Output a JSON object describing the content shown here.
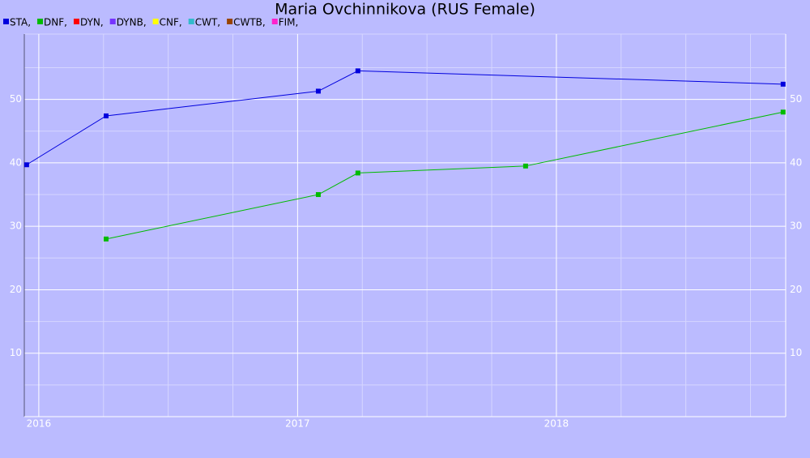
{
  "chart_data": {
    "type": "line",
    "title": "Maria Ovchinnikova (RUS Female)",
    "series": [
      {
        "name": "STA,",
        "color": "#0000dd",
        "x": [
          2015.953,
          2016.26,
          2017.08,
          2017.233,
          2018.876
        ],
        "values": [
          39.7,
          47.4,
          51.3,
          54.5,
          52.4
        ]
      },
      {
        "name": "DNF,",
        "color": "#00bb00",
        "x": [
          2016.26,
          2017.08,
          2017.233,
          2017.881,
          2018.876
        ],
        "values": [
          28.0,
          35.0,
          38.4,
          39.5,
          48.0
        ]
      },
      {
        "name": "DYN,",
        "color": "#ff0000",
        "x": [],
        "values": []
      },
      {
        "name": "DYNB,",
        "color": "#7733ff",
        "x": [],
        "values": []
      },
      {
        "name": "CNF,",
        "color": "#ffff00",
        "x": [],
        "values": []
      },
      {
        "name": "CWT,",
        "color": "#33bbcc",
        "x": [],
        "values": []
      },
      {
        "name": "CWTB,",
        "color": "#994400",
        "x": [],
        "values": []
      },
      {
        "name": "FIM,",
        "color": "#ff22cc",
        "x": [],
        "values": []
      }
    ],
    "xlim": [
      2015.944,
      2018.886
    ],
    "xticks": [
      2016,
      2017,
      2018
    ],
    "x_minor_ticks": [
      2016.25,
      2016.5,
      2016.75,
      2017.25,
      2017.5,
      2017.75,
      2018.25,
      2018.5,
      2018.75
    ],
    "ylim": [
      0,
      60.3
    ],
    "yticks": [
      10,
      20,
      30,
      40,
      50
    ],
    "y_minor_ticks": [
      5,
      15,
      25,
      35,
      45,
      55
    ],
    "grid": true,
    "right_axis_labels": true
  }
}
